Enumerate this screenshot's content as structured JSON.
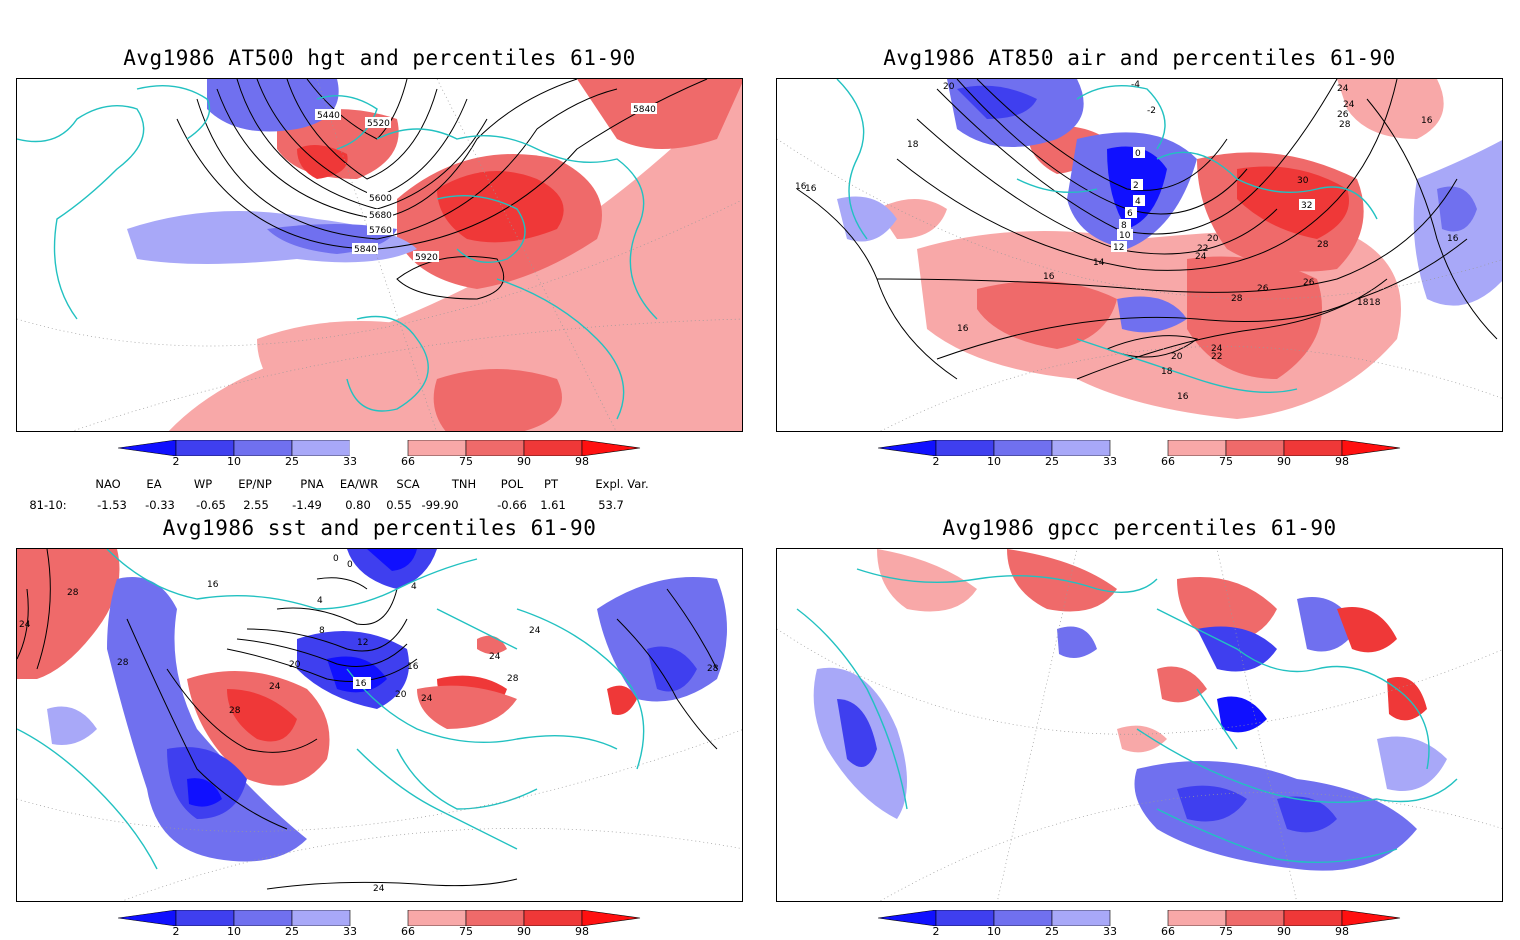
{
  "panels": [
    {
      "title": "Avg1986 AT500 hgt and percentiles 61-90",
      "contour_labels": [
        "5440",
        "5520",
        "5600",
        "5680",
        "5760",
        "5840",
        "5920",
        "5840"
      ]
    },
    {
      "title": "Avg1986 AT850 air and percentiles 61-90",
      "contour_labels": [
        "20",
        "-4",
        "-2",
        "0",
        "2",
        "4",
        "6",
        "8",
        "10",
        "12",
        "14",
        "16",
        "16",
        "18",
        "18",
        "16",
        "20",
        "22",
        "24",
        "26",
        "28",
        "30",
        "32",
        "28",
        "26",
        "24",
        "22",
        "20",
        "18",
        "16",
        "16",
        "24",
        "24",
        "26",
        "28",
        "16",
        "18",
        "16"
      ]
    },
    {
      "title": "Avg1986 sst and percentiles 61-90",
      "contour_labels": [
        "28",
        "24",
        "28",
        "16",
        "0",
        "0",
        "4",
        "4",
        "8",
        "12",
        "16",
        "20",
        "24",
        "28",
        "16",
        "20",
        "24",
        "28",
        "24",
        "24",
        "28",
        "24"
      ]
    },
    {
      "title": "Avg1986 gpcc percentiles 61-90",
      "contour_labels": []
    }
  ],
  "colorbar": {
    "labels": [
      "2",
      "10",
      "25",
      "33",
      "66",
      "75",
      "90",
      "98"
    ],
    "colors": [
      "#1010ff",
      "#3f3fef",
      "#7070ef",
      "#a8a8f8",
      "#ffffff",
      "#f8a8a8",
      "#ef6a6a",
      "#ef3838",
      "#ff1010"
    ]
  },
  "indices": {
    "headers": [
      "NAO",
      "EA",
      "WP",
      "EP/NP",
      "PNA",
      "EA/WR",
      "SCA",
      "TNH",
      "POL",
      "PT",
      "Expl. Var."
    ],
    "row_label": "81-10:",
    "values": [
      "-1.53",
      "-0.33",
      "-0.65",
      "2.55",
      "-1.49",
      "0.80",
      "0.55",
      "-99.90",
      "-0.66",
      "1.61",
      "53.7"
    ]
  },
  "colors": {
    "coast": "#22c1c1",
    "contour": "#000000",
    "grid": "#999999",
    "frame": "#000000"
  }
}
